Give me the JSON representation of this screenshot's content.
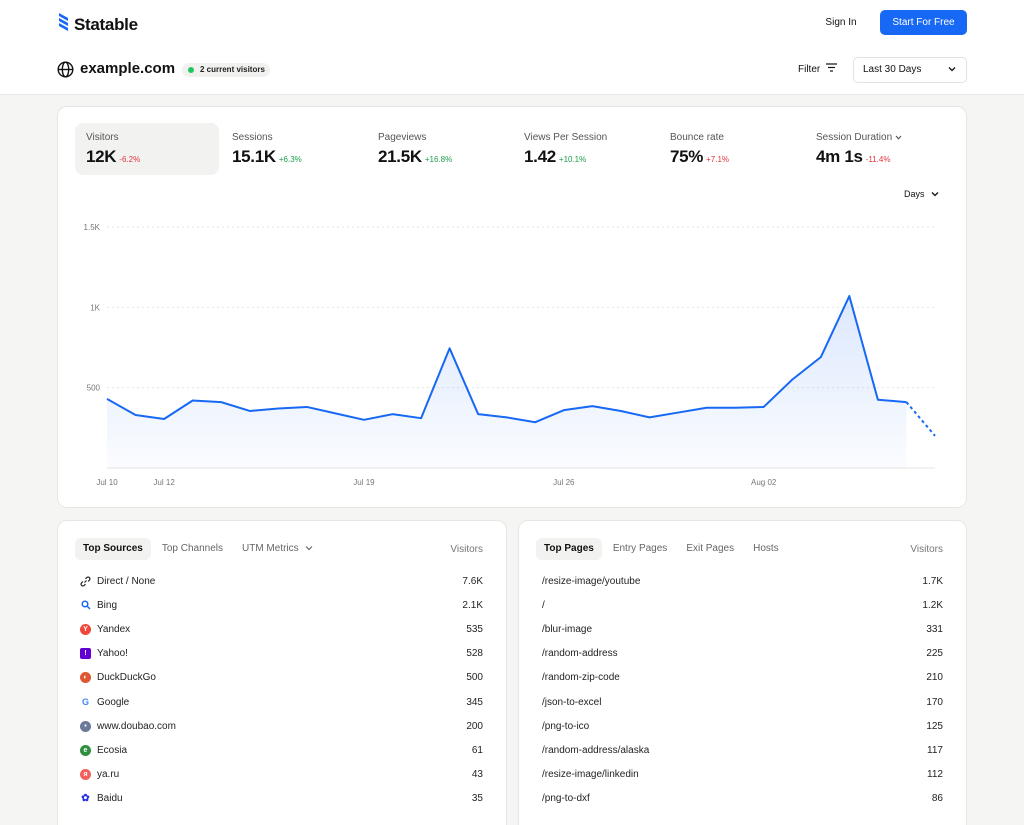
{
  "brand": {
    "name": "Statable"
  },
  "nav": {
    "sign_in": "Sign In",
    "start": "Start For Free"
  },
  "site": {
    "domain": "example.com",
    "live": "2 current visitors",
    "filter": "Filter",
    "range": "Last 30 Days"
  },
  "metrics": [
    {
      "label": "Visitors",
      "value": "12K",
      "change": "-6.2%",
      "trend": "neg"
    },
    {
      "label": "Sessions",
      "value": "15.1K",
      "change": "+6.3%",
      "trend": "pos"
    },
    {
      "label": "Pageviews",
      "value": "21.5K",
      "change": "+16.8%",
      "trend": "pos"
    },
    {
      "label": "Views Per Session",
      "value": "1.42",
      "change": "+10.1%",
      "trend": "pos"
    },
    {
      "label": "Bounce rate",
      "value": "75%",
      "change": "+7.1%",
      "trend": "neg"
    },
    {
      "label": "Session Duration",
      "value": "4m 1s",
      "change": "-11.4%",
      "trend": "neg"
    }
  ],
  "interval": "Days",
  "chart_data": {
    "type": "area",
    "y_ticks": [
      "1.5K",
      "1K",
      "500"
    ],
    "ylim": [
      0,
      1500
    ],
    "x_ticks": [
      {
        "label": "Jul 10",
        "index": 0
      },
      {
        "label": "Jul 12",
        "index": 2
      },
      {
        "label": "Jul 19",
        "index": 9
      },
      {
        "label": "Jul 26",
        "index": 16
      },
      {
        "label": "Aug 02",
        "index": 23
      }
    ],
    "values": [
      430,
      330,
      305,
      420,
      410,
      355,
      370,
      380,
      340,
      300,
      335,
      310,
      745,
      335,
      315,
      285,
      360,
      385,
      355,
      315,
      345,
      375,
      375,
      380,
      550,
      690,
      1070,
      425,
      410,
      200
    ],
    "projected_from_index": 28,
    "color": "#1768f5"
  },
  "sources": {
    "tabs": [
      "Top Sources",
      "Top Channels",
      "UTM Metrics"
    ],
    "column": "Visitors",
    "rows": [
      {
        "name": "Direct / None",
        "value": "7.6K",
        "icon": "link-icon"
      },
      {
        "name": "Bing",
        "value": "2.1K",
        "icon": "bing-icon"
      },
      {
        "name": "Yandex",
        "value": "535",
        "icon": "yandex-icon"
      },
      {
        "name": "Yahoo!",
        "value": "528",
        "icon": "yahoo-icon"
      },
      {
        "name": "DuckDuckGo",
        "value": "500",
        "icon": "duckduckgo-icon"
      },
      {
        "name": "Google",
        "value": "345",
        "icon": "google-icon"
      },
      {
        "name": "www.doubao.com",
        "value": "200",
        "icon": "doubao-icon"
      },
      {
        "name": "Ecosia",
        "value": "61",
        "icon": "ecosia-icon"
      },
      {
        "name": "ya.ru",
        "value": "43",
        "icon": "yaru-icon"
      },
      {
        "name": "Baidu",
        "value": "35",
        "icon": "baidu-icon"
      }
    ]
  },
  "pages": {
    "tabs": [
      "Top Pages",
      "Entry Pages",
      "Exit Pages",
      "Hosts"
    ],
    "column": "Visitors",
    "rows": [
      {
        "name": "/resize-image/youtube",
        "value": "1.7K"
      },
      {
        "name": "/",
        "value": "1.2K"
      },
      {
        "name": "/blur-image",
        "value": "331"
      },
      {
        "name": "/random-address",
        "value": "225"
      },
      {
        "name": "/random-zip-code",
        "value": "210"
      },
      {
        "name": "/json-to-excel",
        "value": "170"
      },
      {
        "name": "/png-to-ico",
        "value": "125"
      },
      {
        "name": "/random-address/alaska",
        "value": "117"
      },
      {
        "name": "/resize-image/linkedin",
        "value": "112"
      },
      {
        "name": "/png-to-dxf",
        "value": "86"
      }
    ]
  }
}
